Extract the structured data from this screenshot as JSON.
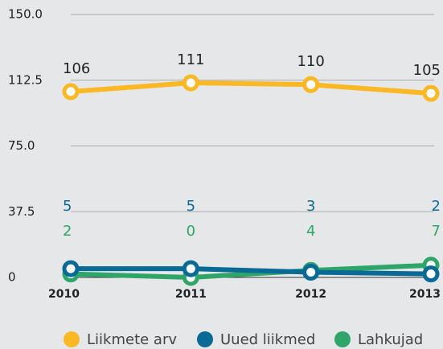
{
  "chart_data": {
    "type": "line",
    "categories": [
      "2010",
      "2011",
      "2012",
      "2013"
    ],
    "series": [
      {
        "name": "Liikmete arv",
        "color": "#fbb825",
        "values": [
          106,
          111,
          110,
          105
        ]
      },
      {
        "name": "Uued liikmed",
        "color": "#0a6a96",
        "values": [
          5,
          5,
          3,
          2
        ]
      },
      {
        "name": "Lahkujad",
        "color": "#2fa56a",
        "values": [
          2,
          0,
          4,
          7
        ]
      }
    ],
    "ylim": [
      0,
      150
    ],
    "yticks": [
      0,
      37.5,
      {
        "value": 75,
        "label": "75.0"
      },
      112.5,
      {
        "value": 150,
        "label": "150.0"
      }
    ],
    "grid": true
  }
}
